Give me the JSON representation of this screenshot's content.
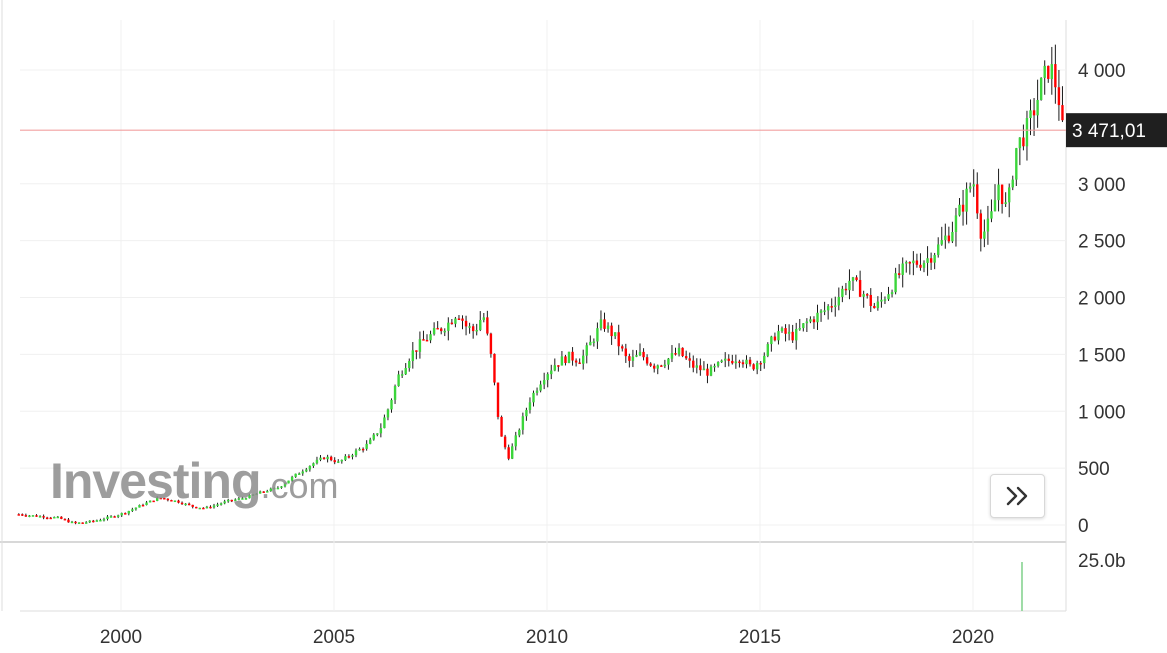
{
  "chart_data": {
    "type": "candlestick",
    "x_ticks": [
      "2000",
      "2005",
      "2010",
      "2015",
      "2020"
    ],
    "y_ticks": [
      "4 000",
      "3 000",
      "2 500",
      "2 000",
      "1 500",
      "1 000",
      "500",
      "0"
    ],
    "ylim": [
      0,
      4400
    ],
    "last_price": 3471.01,
    "last_price_label": "3 471,01",
    "volume_label": "25.0b",
    "up_color": "#3bd53b",
    "down_color": "#ff0000",
    "price_line_color": "#f2a0a0",
    "series": [
      {
        "name": "close",
        "points": [
          [
            1997.6,
            95
          ],
          [
            1998.0,
            80
          ],
          [
            1998.5,
            65
          ],
          [
            1998.9,
            15
          ],
          [
            1999.3,
            30
          ],
          [
            1999.8,
            75
          ],
          [
            2000.1,
            110
          ],
          [
            2000.5,
            180
          ],
          [
            2000.9,
            240
          ],
          [
            2001.3,
            210
          ],
          [
            2001.7,
            160
          ],
          [
            2002.0,
            150
          ],
          [
            2002.5,
            210
          ],
          [
            2002.9,
            240
          ],
          [
            2003.3,
            290
          ],
          [
            2003.7,
            330
          ],
          [
            2004.1,
            440
          ],
          [
            2004.5,
            540
          ],
          [
            2004.8,
            600
          ],
          [
            2005.1,
            550
          ],
          [
            2005.4,
            620
          ],
          [
            2005.8,
            710
          ],
          [
            2006.1,
            860
          ],
          [
            2006.3,
            1050
          ],
          [
            2006.5,
            1300
          ],
          [
            2006.8,
            1500
          ],
          [
            2007.1,
            1620
          ],
          [
            2007.4,
            1700
          ],
          [
            2007.7,
            1780
          ],
          [
            2007.9,
            1880
          ],
          [
            2008.1,
            1750
          ],
          [
            2008.3,
            1700
          ],
          [
            2008.5,
            1860
          ],
          [
            2008.7,
            1450
          ],
          [
            2008.9,
            800
          ],
          [
            2009.1,
            600
          ],
          [
            2009.3,
            800
          ],
          [
            2009.6,
            1100
          ],
          [
            2009.9,
            1300
          ],
          [
            2010.2,
            1420
          ],
          [
            2010.5,
            1480
          ],
          [
            2010.8,
            1450
          ],
          [
            2011.1,
            1650
          ],
          [
            2011.3,
            1780
          ],
          [
            2011.6,
            1650
          ],
          [
            2011.9,
            1430
          ],
          [
            2012.2,
            1500
          ],
          [
            2012.5,
            1400
          ],
          [
            2012.8,
            1450
          ],
          [
            2013.1,
            1520
          ],
          [
            2013.4,
            1400
          ],
          [
            2013.8,
            1340
          ],
          [
            2014.1,
            1420
          ],
          [
            2014.5,
            1480
          ],
          [
            2014.8,
            1380
          ],
          [
            2015.1,
            1500
          ],
          [
            2015.4,
            1700
          ],
          [
            2015.8,
            1660
          ],
          [
            2016.1,
            1780
          ],
          [
            2016.5,
            1880
          ],
          [
            2016.8,
            1990
          ],
          [
            2017.1,
            2150
          ],
          [
            2017.4,
            2050
          ],
          [
            2017.7,
            1900
          ],
          [
            2018.0,
            2050
          ],
          [
            2018.3,
            2220
          ],
          [
            2018.6,
            2300
          ],
          [
            2018.9,
            2330
          ],
          [
            2019.2,
            2450
          ],
          [
            2019.5,
            2600
          ],
          [
            2019.8,
            2850
          ],
          [
            2020.0,
            3050
          ],
          [
            2020.2,
            2550
          ],
          [
            2020.4,
            2650
          ],
          [
            2020.6,
            3000
          ],
          [
            2020.8,
            2750
          ],
          [
            2021.0,
            3300
          ],
          [
            2021.3,
            3500
          ],
          [
            2021.6,
            3850
          ],
          [
            2021.8,
            4050
          ],
          [
            2022.0,
            3800
          ],
          [
            2022.1,
            3471
          ]
        ]
      }
    ]
  },
  "watermark": {
    "brand": "Investing",
    "tld": ".com"
  },
  "icons": {
    "scroll_forward": "double-chevron-right-icon"
  }
}
